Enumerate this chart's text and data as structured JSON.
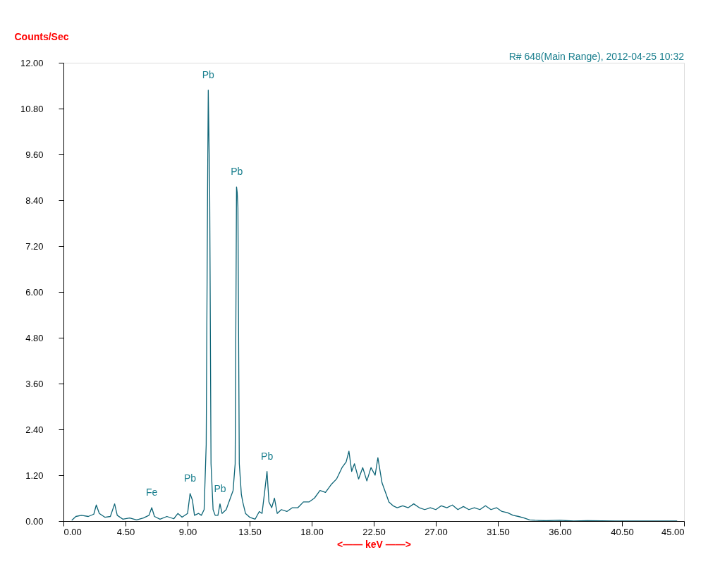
{
  "chart_data": {
    "type": "line",
    "xlabel": "<—— keV ——>",
    "ylabel": "Counts/Sec",
    "annotations": [
      "R# 648(Main Range), 2012-04-25 10:32",
      {
        "text": "Pb",
        "x": 10.5,
        "y": 11.28
      },
      {
        "text": "Pb",
        "x": 12.57,
        "y": 8.75
      },
      {
        "text": "Pb",
        "x": 14.76,
        "y": 1.3
      },
      {
        "text": "Pb",
        "x": 9.18,
        "y": 0.72
      },
      {
        "text": "Pb",
        "x": 11.35,
        "y": 0.45
      },
      {
        "text": "Fe",
        "x": 6.4,
        "y": 0.35
      }
    ],
    "xlim": [
      0,
      45
    ],
    "ylim": [
      0,
      12
    ],
    "xticks": [
      {
        "value": 0,
        "label": "0.00"
      },
      {
        "value": 4.5,
        "label": "4.50"
      },
      {
        "value": 9,
        "label": "9.00"
      },
      {
        "value": 13.5,
        "label": "13.50"
      },
      {
        "value": 18,
        "label": "18.00"
      },
      {
        "value": 22.5,
        "label": "22.50"
      },
      {
        "value": 27,
        "label": "27.00"
      },
      {
        "value": 31.5,
        "label": "31.50"
      },
      {
        "value": 36,
        "label": "36.00"
      },
      {
        "value": 40.5,
        "label": "40.50"
      },
      {
        "value": 45,
        "label": "45.00"
      }
    ],
    "yticks": [
      {
        "value": 0,
        "label": "0.00"
      },
      {
        "value": 1.2,
        "label": "1.20"
      },
      {
        "value": 2.4,
        "label": "2.40"
      },
      {
        "value": 3.6,
        "label": "3.60"
      },
      {
        "value": 4.8,
        "label": "4.80"
      },
      {
        "value": 6,
        "label": "6.00"
      },
      {
        "value": 7.2,
        "label": "7.20"
      },
      {
        "value": 8.4,
        "label": "8.40"
      },
      {
        "value": 9.6,
        "label": "9.60"
      },
      {
        "value": 10.8,
        "label": "10.80"
      },
      {
        "value": 12,
        "label": "12.00"
      }
    ],
    "grid": false,
    "marker": "none",
    "line_style": "solid",
    "series": [
      {
        "color": "#0e6577",
        "x": [
          0.6,
          0.9,
          1.3,
          1.8,
          2.2,
          2.38,
          2.6,
          3.0,
          3.4,
          3.71,
          3.9,
          4.3,
          4.8,
          5.3,
          5.8,
          6.2,
          6.4,
          6.6,
          7.0,
          7.5,
          8.0,
          8.3,
          8.6,
          9.0,
          9.18,
          9.35,
          9.5,
          9.8,
          10.0,
          10.2,
          10.35,
          10.45,
          10.5,
          10.55,
          10.6,
          10.7,
          10.85,
          11.0,
          11.2,
          11.35,
          11.5,
          11.8,
          12.1,
          12.3,
          12.45,
          12.55,
          12.6,
          12.65,
          12.75,
          12.9,
          13.0,
          13.2,
          13.5,
          13.9,
          14.2,
          14.4,
          14.6,
          14.76,
          14.9,
          15.1,
          15.3,
          15.5,
          15.8,
          16.2,
          16.6,
          17.0,
          17.4,
          17.8,
          18.2,
          18.6,
          19.0,
          19.4,
          19.8,
          20.2,
          20.5,
          20.7,
          20.9,
          21.1,
          21.4,
          21.7,
          22.0,
          22.3,
          22.6,
          22.8,
          23.1,
          23.4,
          23.6,
          23.9,
          24.2,
          24.6,
          25.0,
          25.4,
          25.8,
          26.2,
          26.6,
          27.0,
          27.4,
          27.8,
          28.2,
          28.6,
          29.0,
          29.4,
          29.8,
          30.2,
          30.6,
          31.0,
          31.4,
          31.8,
          32.2,
          32.6,
          33.0,
          33.4,
          33.8,
          34.2,
          35.0,
          36.0,
          37.0,
          38.0,
          40.0,
          42.0,
          44.5
        ],
        "values": [
          0.02,
          0.12,
          0.15,
          0.12,
          0.18,
          0.42,
          0.2,
          0.1,
          0.12,
          0.45,
          0.15,
          0.05,
          0.08,
          0.03,
          0.08,
          0.15,
          0.35,
          0.12,
          0.05,
          0.12,
          0.06,
          0.2,
          0.1,
          0.2,
          0.72,
          0.55,
          0.15,
          0.2,
          0.15,
          0.3,
          2.0,
          8.6,
          11.28,
          10.0,
          8.8,
          1.5,
          0.3,
          0.15,
          0.15,
          0.45,
          0.2,
          0.3,
          0.6,
          0.8,
          1.5,
          8.75,
          8.6,
          8.2,
          1.5,
          0.7,
          0.5,
          0.2,
          0.1,
          0.05,
          0.25,
          0.2,
          0.8,
          1.3,
          0.5,
          0.35,
          0.6,
          0.2,
          0.3,
          0.25,
          0.35,
          0.35,
          0.5,
          0.5,
          0.6,
          0.8,
          0.75,
          0.95,
          1.1,
          1.4,
          1.55,
          1.83,
          1.3,
          1.5,
          1.1,
          1.4,
          1.05,
          1.4,
          1.2,
          1.66,
          1.0,
          0.7,
          0.5,
          0.4,
          0.35,
          0.4,
          0.35,
          0.45,
          0.35,
          0.3,
          0.35,
          0.3,
          0.4,
          0.35,
          0.42,
          0.3,
          0.38,
          0.3,
          0.35,
          0.3,
          0.4,
          0.3,
          0.35,
          0.25,
          0.22,
          0.15,
          0.12,
          0.08,
          0.03,
          0.02,
          0.01,
          0.02,
          0.0,
          0.01,
          0.0,
          0.0,
          0.0
        ]
      }
    ]
  }
}
